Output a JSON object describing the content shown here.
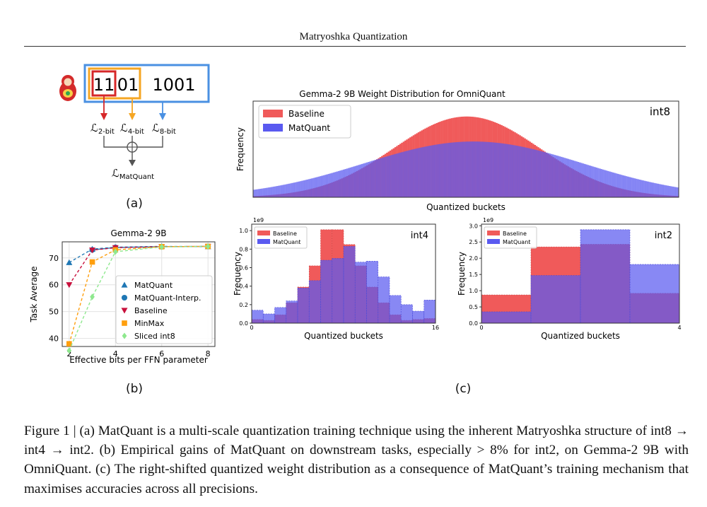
{
  "header": {
    "running_title": "Matryoshka Quantization"
  },
  "panel_a": {
    "label": "(a)",
    "bits": [
      "11",
      "01",
      "1001"
    ],
    "losses": [
      {
        "symbol": "ℒ",
        "sub": "2-bit",
        "color": "#d62728"
      },
      {
        "symbol": "ℒ",
        "sub": "4-bit",
        "color": "#f5a623"
      },
      {
        "symbol": "ℒ",
        "sub": "8-bit",
        "color": "#4a90e2"
      }
    ],
    "combined": {
      "symbol": "ℒ",
      "sub": "MatQuant"
    },
    "doll_icon": "matryoshka-doll-icon"
  },
  "panel_b_label": "(b)",
  "panel_c_label": "(c)",
  "caption": "Figure 1 | (a) MatQuant is a multi-scale quantization training technique using the inherent Matryoshka structure of int8 → int4 → int2. (b) Empirical gains of MatQuant on downstream tasks, especially > 8% for int2, on Gemma-2 9B with OmniQuant. (c) The right-shifted quantized weight distribution as a consequence of MatQuant’s training mechanism that maximises accuracies across all precisions.",
  "colors": {
    "baseline": "#f05a5a",
    "matquant": "#5a5af0",
    "overlap": "#6a2fb0"
  },
  "chart_data": [
    {
      "id": "task-average-line",
      "type": "line",
      "title": "Gemma-2 9B",
      "xlabel": "Effective bits per FFN parameter",
      "ylabel": "Task Average",
      "xlim": [
        1.7,
        8.3
      ],
      "ylim": [
        37,
        76
      ],
      "xticks": [
        2,
        4,
        6,
        8
      ],
      "yticks": [
        40,
        50,
        60,
        70
      ],
      "grid": true,
      "legend": "bottom-right",
      "series": [
        {
          "name": "MatQuant",
          "marker": "triangle-up",
          "color": "#1f77b4",
          "x": [
            2,
            3,
            4,
            6,
            8
          ],
          "y": [
            68.3,
            73.3,
            74.0,
            74.3,
            74.2
          ]
        },
        {
          "name": "MatQuant-Interp.",
          "marker": "circle",
          "color": "#1f77b4",
          "x": [
            3,
            4,
            6,
            8
          ],
          "y": [
            73.0,
            73.9,
            74.2,
            74.3
          ]
        },
        {
          "name": "Baseline",
          "marker": "triangle-down",
          "color": "#c8103c",
          "x": [
            2,
            3,
            4,
            6,
            8
          ],
          "y": [
            60.0,
            72.9,
            73.8,
            74.2,
            74.3
          ]
        },
        {
          "name": "MinMax",
          "marker": "square",
          "color": "#ff9f0e",
          "x": [
            2,
            3,
            4,
            6,
            8
          ],
          "y": [
            38.0,
            68.5,
            73.0,
            74.2,
            74.3
          ]
        },
        {
          "name": "Sliced int8",
          "marker": "diamond",
          "color": "#8ee88e",
          "x": [
            2,
            3,
            4,
            6,
            8
          ],
          "y": [
            35.5,
            55.5,
            72.3,
            74.1,
            74.3
          ]
        }
      ]
    },
    {
      "id": "int8-hist",
      "type": "area",
      "title": "Gemma-2 9B Weight Distribution for OmniQuant",
      "xlabel": "Quantized buckets",
      "ylabel": "Frequency",
      "annotation": "int8",
      "legend": "top-left",
      "series": [
        {
          "name": "Baseline",
          "color": "#f05a5a",
          "mean": 128,
          "sd": 44,
          "peak": 0.84
        },
        {
          "name": "MatQuant",
          "color": "#5a5af0",
          "mean": 132,
          "sd": 66,
          "peak": 0.58
        }
      ]
    },
    {
      "id": "int4-hist",
      "type": "bar",
      "xlabel": "Quantized buckets",
      "ylabel": "Frequency",
      "annotation": "int4",
      "scale_label": "1e9",
      "xlim": [
        0,
        16
      ],
      "ylim": [
        0,
        1.07
      ],
      "xticks": [
        0,
        16
      ],
      "yticks": [
        0.0,
        0.2,
        0.4,
        0.6,
        0.8,
        1.0
      ],
      "legend": "top-left",
      "categories": [
        0,
        1,
        2,
        3,
        4,
        5,
        6,
        7,
        8,
        9,
        10,
        11,
        12,
        13,
        14,
        15
      ],
      "series": [
        {
          "name": "Baseline",
          "color": "#f05a5a",
          "values": [
            0.04,
            0.03,
            0.09,
            0.22,
            0.39,
            0.62,
            1.01,
            1.01,
            0.85,
            0.62,
            0.39,
            0.22,
            0.09,
            0.03,
            0.04,
            0.05
          ]
        },
        {
          "name": "MatQuant",
          "color": "#5a5af0",
          "values": [
            0.14,
            0.1,
            0.17,
            0.24,
            0.38,
            0.46,
            0.68,
            0.7,
            0.83,
            0.66,
            0.67,
            0.5,
            0.3,
            0.2,
            0.13,
            0.25
          ]
        }
      ]
    },
    {
      "id": "int2-hist",
      "type": "bar",
      "xlabel": "Quantized buckets",
      "ylabel": "Frequency",
      "annotation": "int2",
      "scale_label": "1e9",
      "xlim": [
        0,
        4
      ],
      "ylim": [
        0,
        3.05
      ],
      "xticks": [
        0,
        4
      ],
      "yticks": [
        0.0,
        0.5,
        1.0,
        1.5,
        2.0,
        2.5,
        3.0
      ],
      "legend": "top-left",
      "categories": [
        0,
        1,
        2,
        3
      ],
      "series": [
        {
          "name": "Baseline",
          "color": "#f05a5a",
          "values": [
            0.87,
            2.35,
            2.43,
            0.92
          ]
        },
        {
          "name": "MatQuant",
          "color": "#5a5af0",
          "values": [
            0.35,
            1.47,
            2.88,
            1.81
          ]
        }
      ]
    }
  ]
}
